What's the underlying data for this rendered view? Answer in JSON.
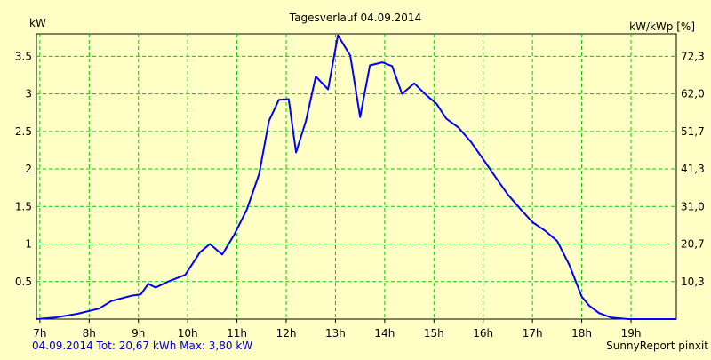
{
  "chart_data": {
    "type": "line",
    "title": "Tagesverlauf 04.09.2014",
    "ylabel_left": "kW",
    "ylabel_right": "kW/kWp [%]",
    "x_ticks": [
      "7h",
      "8h",
      "9h",
      "10h",
      "11h",
      "12h",
      "13h",
      "14h",
      "15h",
      "16h",
      "17h",
      "18h",
      "19h"
    ],
    "y_ticks_left": [
      "0.5",
      "1",
      "1.5",
      "2",
      "2.5",
      "3",
      "3.5"
    ],
    "y_ticks_right": [
      "10,3",
      "20,7",
      "31,0",
      "41,3",
      "51,7",
      "62,0",
      "72,3"
    ],
    "xlim": [
      6.93,
      19.92
    ],
    "ylim": [
      0,
      3.8
    ],
    "grid": true,
    "line_color": "#0000ff",
    "grid_color": "#00cc00",
    "series": [
      {
        "x": [
          6.93,
          7.3,
          7.75,
          8.2,
          8.45,
          8.85,
          9.05,
          9.2,
          9.35,
          9.6,
          9.95,
          10.25,
          10.45,
          10.7,
          10.95,
          11.2,
          11.45,
          11.65,
          11.85,
          12.05,
          12.2,
          12.4,
          12.6,
          12.85,
          13.05,
          13.3,
          13.5,
          13.7,
          13.95,
          14.15,
          14.35,
          14.6,
          14.85,
          15.05,
          15.25,
          15.5,
          15.75,
          16.0,
          16.25,
          16.5,
          16.75,
          17.0,
          17.25,
          17.5,
          17.75,
          18.0,
          18.15,
          18.35,
          18.6,
          18.95,
          19.3,
          19.62,
          19.92
        ],
        "y": [
          0.0,
          0.02,
          0.07,
          0.14,
          0.24,
          0.31,
          0.33,
          0.47,
          0.42,
          0.5,
          0.59,
          0.89,
          1.0,
          0.86,
          1.13,
          1.46,
          1.93,
          2.64,
          2.92,
          2.93,
          2.22,
          2.64,
          3.23,
          3.06,
          3.78,
          3.51,
          2.69,
          3.38,
          3.42,
          3.37,
          3.0,
          3.14,
          2.98,
          2.87,
          2.67,
          2.55,
          2.36,
          2.13,
          1.89,
          1.66,
          1.47,
          1.29,
          1.18,
          1.04,
          0.72,
          0.3,
          0.18,
          0.08,
          0.02,
          0.0,
          0.0,
          0.0,
          0.0
        ]
      }
    ]
  },
  "footer": {
    "left": "04.09.2014 Tot: 20,67 kWh Max: 3,80 kW",
    "right": "SunnyReport pinxit"
  }
}
